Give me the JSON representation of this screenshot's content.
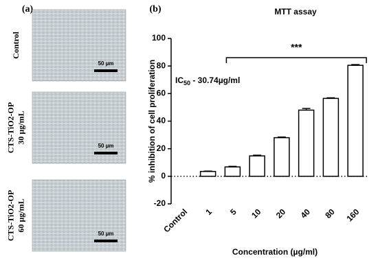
{
  "panels": {
    "a": {
      "label": "(a)",
      "images": [
        {
          "caption": [
            "Control"
          ],
          "scale_bar": "50 µm"
        },
        {
          "caption": [
            "CTS-TiO2-OP",
            "30 µg/mL"
          ],
          "scale_bar": "50 µm"
        },
        {
          "caption": [
            "CTS-TiO2-OP",
            "60 µg/mL"
          ],
          "scale_bar": "50 µm"
        }
      ]
    },
    "b": {
      "label": "(b)"
    }
  },
  "chart_data": {
    "type": "bar",
    "title": "MTT assay",
    "x_label": "Concentration (µg/ml)",
    "y_label": "% inhibition of cell proliferation",
    "categories": [
      "Control",
      "1",
      "5",
      "10",
      "20",
      "40",
      "80",
      "160"
    ],
    "values": [
      null,
      3.5,
      6.8,
      14.8,
      28,
      48,
      56.5,
      80.5
    ],
    "errors": [
      null,
      0.3,
      0.4,
      0.5,
      0.5,
      1.2,
      0.4,
      0.5
    ],
    "color": "#ffffff",
    "ylim": [
      -20,
      100
    ],
    "yticks": [
      -20,
      0,
      20,
      40,
      60,
      80,
      100
    ],
    "annotation": {
      "base": "IC",
      "sub": "50",
      "text": " - 30.74µg/ml"
    },
    "significance": {
      "label": "***",
      "from": "5",
      "to": "160"
    }
  }
}
